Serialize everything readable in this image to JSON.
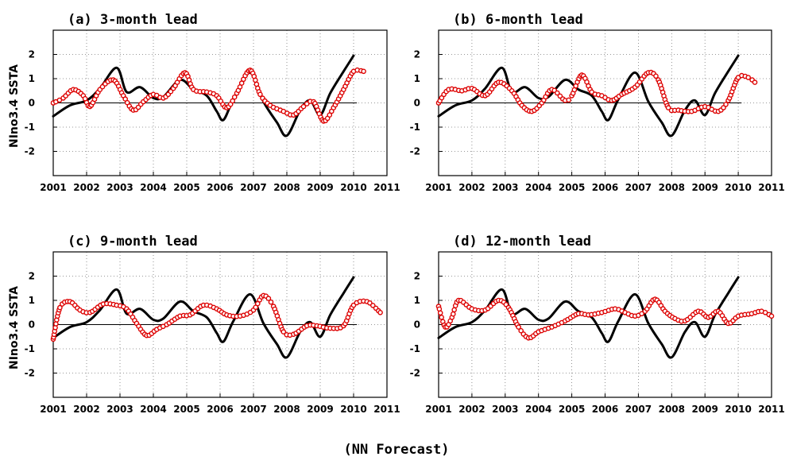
{
  "caption": "(NN Forecast)",
  "colors": {
    "observed": "#000000",
    "forecast": "#dd0000",
    "grid": "#777777"
  },
  "shared_ylabel": "NIno3.4 SSTA",
  "panels": [
    {
      "title": "(a) 3-month lead",
      "ylabel": "NIno3.4 SSTA"
    },
    {
      "title": "(b) 6-month lead",
      "ylabel": ""
    },
    {
      "title": "(c) 9-month lead",
      "ylabel": "NIno3.4 SSTA"
    },
    {
      "title": "(d) 12-month lead",
      "ylabel": ""
    }
  ],
  "chart_data": [
    {
      "type": "line",
      "title": "(a) 3-month lead",
      "ylabel": "NIno3.4 SSTA",
      "xlim": [
        2001,
        2011
      ],
      "ylim": [
        -3,
        3
      ],
      "grid": true,
      "x_ticks": [
        2001,
        2002,
        2003,
        2004,
        2005,
        2006,
        2007,
        2008,
        2009,
        2010,
        2011
      ],
      "y_ticks": [
        -2,
        -1,
        0,
        1,
        2
      ],
      "series": [
        {
          "style": "solid-line",
          "x": [
            2001.0,
            2001.5,
            2002.0,
            2002.4,
            2002.9,
            2003.2,
            2003.6,
            2004.0,
            2004.3,
            2004.8,
            2005.2,
            2005.6,
            2005.9,
            2006.1,
            2006.4,
            2006.9,
            2007.3,
            2007.7,
            2008.0,
            2008.4,
            2008.7,
            2009.0,
            2009.3,
            2009.7,
            2010.0
          ],
          "y": [
            -0.55,
            -0.1,
            0.1,
            0.6,
            1.45,
            0.45,
            0.65,
            0.2,
            0.25,
            0.95,
            0.55,
            0.3,
            -0.35,
            -0.7,
            0.15,
            1.25,
            0.05,
            -0.8,
            -1.35,
            -0.3,
            0.1,
            -0.5,
            0.4,
            1.3,
            1.95
          ]
        },
        {
          "style": "open-circles",
          "x": [
            2001.0,
            2001.3,
            2001.6,
            2001.9,
            2002.1,
            2002.4,
            2002.8,
            2003.1,
            2003.4,
            2003.7,
            2004.0,
            2004.3,
            2004.6,
            2004.95,
            2005.2,
            2005.6,
            2005.9,
            2006.2,
            2006.5,
            2006.9,
            2007.2,
            2007.5,
            2007.9,
            2008.2,
            2008.5,
            2008.8,
            2009.1,
            2009.4,
            2009.7,
            2010.0,
            2010.3
          ],
          "y": [
            0.0,
            0.2,
            0.55,
            0.3,
            -0.15,
            0.55,
            0.95,
            0.3,
            -0.3,
            0.05,
            0.35,
            0.2,
            0.6,
            1.25,
            0.55,
            0.45,
            0.3,
            -0.2,
            0.4,
            1.35,
            0.35,
            -0.1,
            -0.35,
            -0.5,
            -0.15,
            0.05,
            -0.75,
            -0.2,
            0.55,
            1.3,
            1.3
          ]
        }
      ]
    },
    {
      "type": "line",
      "title": "(b) 6-month lead",
      "ylabel": "",
      "xlim": [
        2001,
        2011
      ],
      "ylim": [
        -3,
        3
      ],
      "grid": true,
      "x_ticks": [
        2001,
        2002,
        2003,
        2004,
        2005,
        2006,
        2007,
        2008,
        2009,
        2010,
        2011
      ],
      "y_ticks": [
        -2,
        -1,
        0,
        1,
        2
      ],
      "series": [
        {
          "style": "solid-line",
          "x": [
            2001.0,
            2001.5,
            2002.0,
            2002.4,
            2002.9,
            2003.2,
            2003.6,
            2004.0,
            2004.3,
            2004.8,
            2005.2,
            2005.6,
            2005.9,
            2006.1,
            2006.4,
            2006.9,
            2007.3,
            2007.7,
            2008.0,
            2008.4,
            2008.7,
            2009.0,
            2009.3,
            2009.7,
            2010.0
          ],
          "y": [
            -0.55,
            -0.1,
            0.1,
            0.6,
            1.45,
            0.45,
            0.65,
            0.2,
            0.25,
            0.95,
            0.55,
            0.3,
            -0.35,
            -0.7,
            0.15,
            1.25,
            0.05,
            -0.8,
            -1.35,
            -0.3,
            0.1,
            -0.5,
            0.4,
            1.3,
            1.95
          ]
        },
        {
          "style": "open-circles",
          "x": [
            2001.0,
            2001.3,
            2001.7,
            2002.0,
            2002.4,
            2002.8,
            2003.2,
            2003.5,
            2003.8,
            2004.1,
            2004.4,
            2004.8,
            2005.0,
            2005.3,
            2005.6,
            2005.9,
            2006.2,
            2006.5,
            2006.9,
            2007.3,
            2007.6,
            2007.9,
            2008.2,
            2008.6,
            2009.0,
            2009.4,
            2009.7,
            2010.0,
            2010.3,
            2010.5
          ],
          "y": [
            0.0,
            0.55,
            0.5,
            0.6,
            0.3,
            0.85,
            0.5,
            -0.1,
            -0.35,
            0.0,
            0.55,
            0.1,
            0.3,
            1.15,
            0.45,
            0.3,
            0.1,
            0.35,
            0.65,
            1.25,
            0.95,
            -0.2,
            -0.3,
            -0.35,
            -0.15,
            -0.35,
            0.1,
            1.05,
            1.05,
            0.85
          ]
        }
      ]
    },
    {
      "type": "line",
      "title": "(c) 9-month lead",
      "ylabel": "NIno3.4 SSTA",
      "xlim": [
        2001,
        2011
      ],
      "ylim": [
        -3,
        3
      ],
      "grid": true,
      "x_ticks": [
        2001,
        2002,
        2003,
        2004,
        2005,
        2006,
        2007,
        2008,
        2009,
        2010,
        2011
      ],
      "y_ticks": [
        -2,
        -1,
        0,
        1,
        2
      ],
      "series": [
        {
          "style": "solid-line",
          "x": [
            2001.0,
            2001.5,
            2002.0,
            2002.4,
            2002.9,
            2003.2,
            2003.6,
            2004.0,
            2004.3,
            2004.8,
            2005.2,
            2005.6,
            2005.9,
            2006.1,
            2006.4,
            2006.9,
            2007.3,
            2007.7,
            2008.0,
            2008.4,
            2008.7,
            2009.0,
            2009.3,
            2009.7,
            2010.0
          ],
          "y": [
            -0.55,
            -0.1,
            0.1,
            0.6,
            1.45,
            0.45,
            0.65,
            0.2,
            0.25,
            0.95,
            0.55,
            0.3,
            -0.35,
            -0.7,
            0.15,
            1.25,
            0.05,
            -0.8,
            -1.35,
            -0.3,
            0.1,
            -0.5,
            0.4,
            1.3,
            1.95
          ]
        },
        {
          "style": "open-circles",
          "x": [
            2001.0,
            2001.2,
            2001.5,
            2001.8,
            2002.1,
            2002.5,
            2002.9,
            2003.2,
            2003.5,
            2003.8,
            2004.1,
            2004.4,
            2004.8,
            2005.1,
            2005.5,
            2005.9,
            2006.2,
            2006.6,
            2007.0,
            2007.3,
            2007.6,
            2007.9,
            2008.2,
            2008.6,
            2008.9,
            2009.3,
            2009.7,
            2010.0,
            2010.4,
            2010.8
          ],
          "y": [
            -0.6,
            0.7,
            0.95,
            0.6,
            0.5,
            0.85,
            0.8,
            0.65,
            0.05,
            -0.45,
            -0.2,
            0.0,
            0.35,
            0.4,
            0.8,
            0.65,
            0.4,
            0.35,
            0.6,
            1.2,
            0.75,
            -0.3,
            -0.4,
            -0.05,
            -0.05,
            -0.15,
            -0.05,
            0.8,
            0.95,
            0.5
          ]
        }
      ]
    },
    {
      "type": "line",
      "title": "(d) 12-month lead",
      "ylabel": "",
      "xlim": [
        2001,
        2011
      ],
      "ylim": [
        -3,
        3
      ],
      "grid": true,
      "x_ticks": [
        2001,
        2002,
        2003,
        2004,
        2005,
        2006,
        2007,
        2008,
        2009,
        2010,
        2011
      ],
      "y_ticks": [
        -2,
        -1,
        0,
        1,
        2
      ],
      "series": [
        {
          "style": "solid-line",
          "x": [
            2001.0,
            2001.5,
            2002.0,
            2002.4,
            2002.9,
            2003.2,
            2003.6,
            2004.0,
            2004.3,
            2004.8,
            2005.2,
            2005.6,
            2005.9,
            2006.1,
            2006.4,
            2006.9,
            2007.3,
            2007.7,
            2008.0,
            2008.4,
            2008.7,
            2009.0,
            2009.3,
            2009.7,
            2010.0
          ],
          "y": [
            -0.55,
            -0.1,
            0.1,
            0.6,
            1.45,
            0.45,
            0.65,
            0.2,
            0.25,
            0.95,
            0.55,
            0.3,
            -0.35,
            -0.7,
            0.15,
            1.25,
            0.05,
            -0.8,
            -1.35,
            -0.3,
            0.1,
            -0.5,
            0.4,
            1.3,
            1.95
          ]
        },
        {
          "style": "open-circles",
          "x": [
            2001.0,
            2001.2,
            2001.4,
            2001.6,
            2002.0,
            2002.4,
            2002.8,
            2003.1,
            2003.4,
            2003.7,
            2004.0,
            2004.4,
            2004.8,
            2005.2,
            2005.5,
            2005.9,
            2006.3,
            2006.6,
            2006.9,
            2007.2,
            2007.5,
            2007.8,
            2008.1,
            2008.4,
            2008.8,
            2009.1,
            2009.4,
            2009.7,
            2010.0,
            2010.4,
            2010.7,
            2011.0
          ],
          "y": [
            0.75,
            -0.1,
            0.3,
            1.0,
            0.65,
            0.6,
            1.0,
            0.7,
            -0.1,
            -0.55,
            -0.3,
            -0.1,
            0.15,
            0.45,
            0.4,
            0.5,
            0.65,
            0.5,
            0.35,
            0.55,
            1.05,
            0.55,
            0.25,
            0.15,
            0.55,
            0.3,
            0.55,
            0.05,
            0.35,
            0.45,
            0.55,
            0.35
          ]
        }
      ]
    }
  ]
}
